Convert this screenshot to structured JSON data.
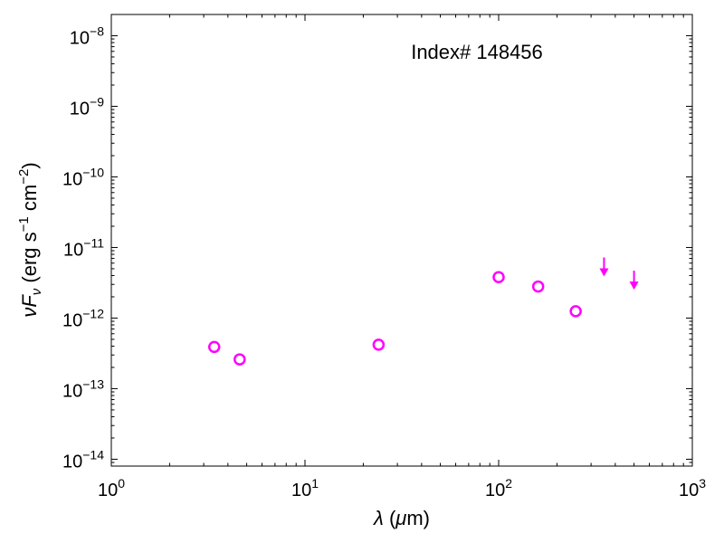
{
  "chart_data": {
    "type": "scatter",
    "annotation": "Index# 148456",
    "xlabel": {
      "symbol": "λ",
      "unit_open": " (",
      "mu": "μ",
      "unit_rest": "m)"
    },
    "ylabel": {
      "symbol": "νF",
      "subscript": "ν",
      "text1": " (erg s",
      "exp1": "−1",
      "text2": " cm",
      "exp2": "−2",
      "text3": ")"
    },
    "x_scale": "log",
    "y_scale": "log",
    "xlim": [
      1,
      1000
    ],
    "ylim": [
      8e-15,
      2e-08
    ],
    "x_ticks": [
      {
        "value": 1,
        "base": "10",
        "exp": "0"
      },
      {
        "value": 10,
        "base": "10",
        "exp": "1"
      },
      {
        "value": 100,
        "base": "10",
        "exp": "2"
      },
      {
        "value": 1000,
        "base": "10",
        "exp": "3"
      }
    ],
    "y_ticks": [
      {
        "value": 1e-14,
        "base": "10",
        "exp": "−14"
      },
      {
        "value": 1e-13,
        "base": "10",
        "exp": "−13"
      },
      {
        "value": 1e-12,
        "base": "10",
        "exp": "−12"
      },
      {
        "value": 1e-11,
        "base": "10",
        "exp": "−11"
      },
      {
        "value": 1e-10,
        "base": "10",
        "exp": "−10"
      },
      {
        "value": 1e-09,
        "base": "10",
        "exp": "−9"
      },
      {
        "value": 1e-08,
        "base": "10",
        "exp": "−8"
      }
    ],
    "grid": false,
    "marker_color": "#ff00ff",
    "points": [
      {
        "x": 3.4,
        "y": 3.9e-13
      },
      {
        "x": 4.6,
        "y": 2.6e-13
      },
      {
        "x": 24,
        "y": 4.2e-13
      },
      {
        "x": 100,
        "y": 3.8e-12
      },
      {
        "x": 160,
        "y": 2.8e-12
      },
      {
        "x": 250,
        "y": 1.25e-12
      }
    ],
    "upper_limits": [
      {
        "x": 350,
        "y": 4e-12
      },
      {
        "x": 500,
        "y": 2.6e-12
      }
    ]
  }
}
